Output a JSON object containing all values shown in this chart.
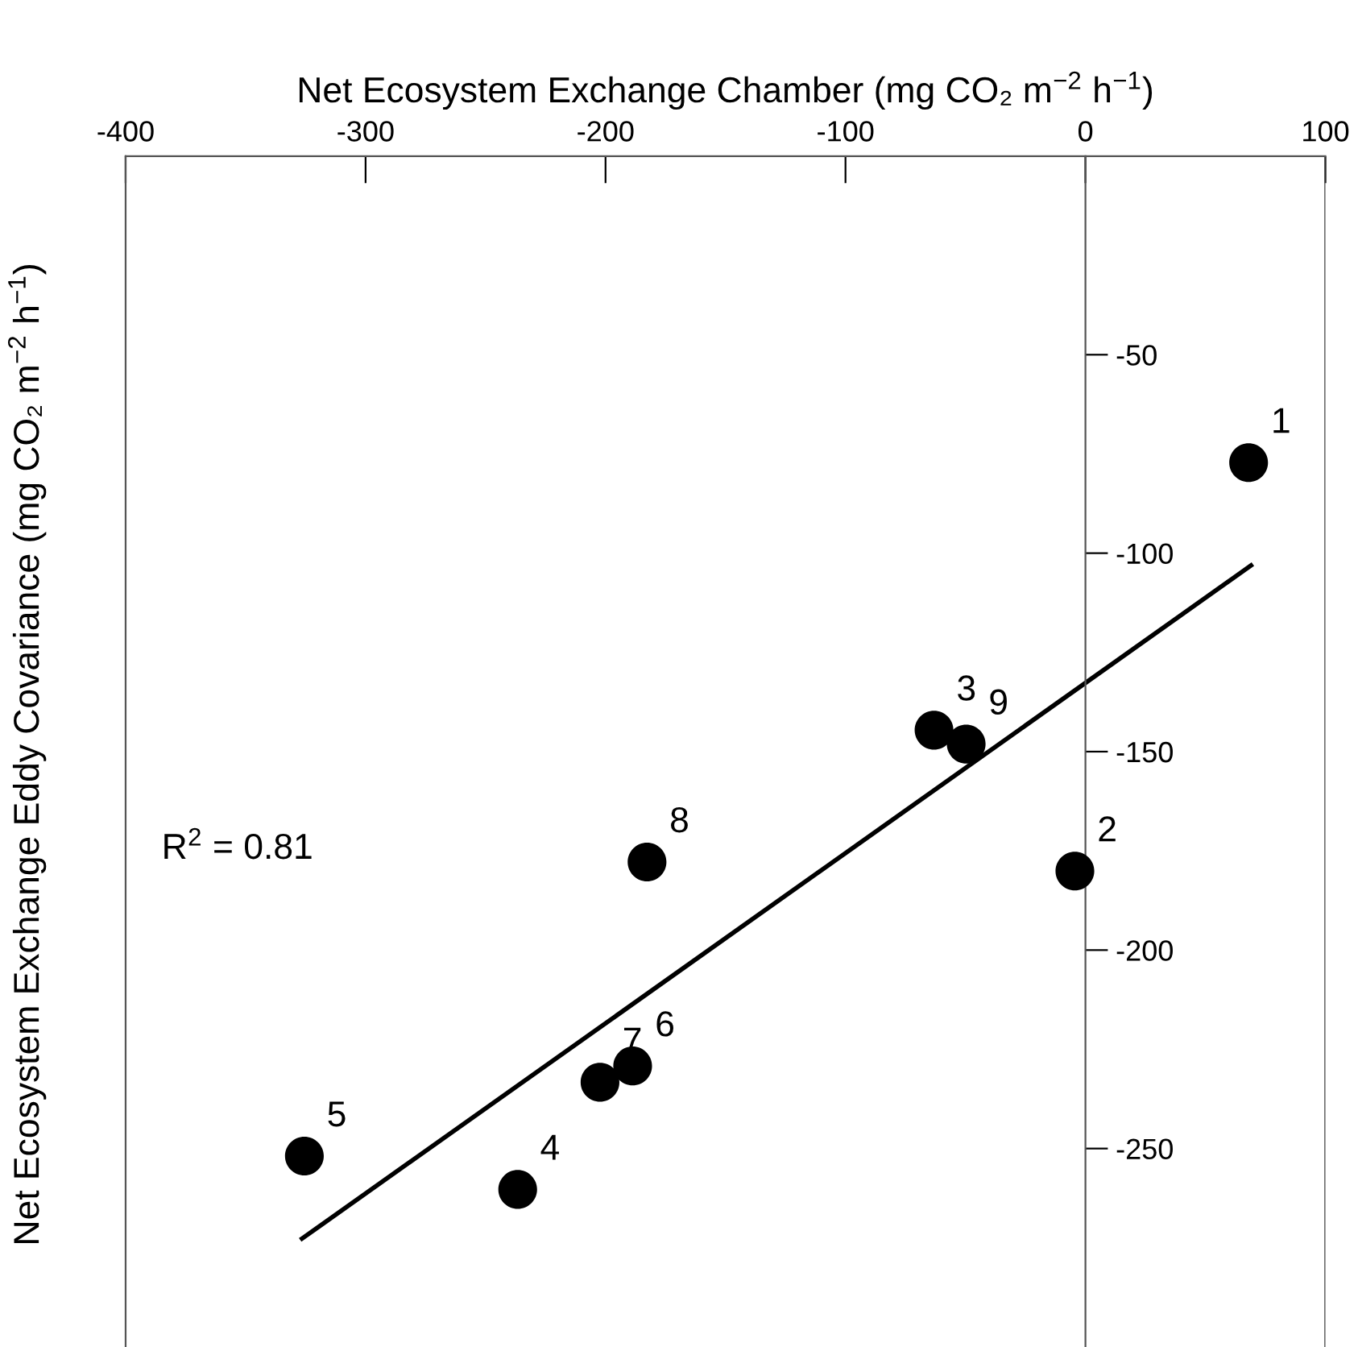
{
  "chart_data": {
    "type": "scatter",
    "xlabel": "Net Ecosystem Exchange Chamber (mg CO₂ m$^{−2}$ h$^{−1}$)",
    "ylabel": "Net Ecosystem Exchange Eddy Covariance (mg CO₂ m$^{−2}$ h$^{−1}$)",
    "xlim": [
      -400,
      100
    ],
    "xticks": [
      -400,
      -300,
      -200,
      -100,
      0,
      100
    ],
    "ylim": [
      -300,
      0
    ],
    "yticks": [
      -50,
      -100,
      -150,
      -200,
      -250
    ],
    "grid": false,
    "marker": "circle",
    "series": [
      {
        "color": "#000000",
        "x": [
          68,
          -4.4,
          -63.1,
          -236.6,
          -325.5,
          -188.7,
          -202.3,
          -182.7,
          -49.7
        ],
        "values": [
          -77.2,
          -180.1,
          -144.6,
          -260.3,
          -251.9,
          -229.2,
          -233.3,
          -177.8,
          -148.1
        ]
      },
      {
        "type": "line",
        "color": "#000000",
        "line_style": "solid",
        "marker": "none",
        "x": [
          -326.5,
          69
        ],
        "values": [
          -272.7,
          -103.1
        ]
      }
    ],
    "annotations": [
      {
        "text": "1",
        "x": 68,
        "y": -77.2
      },
      {
        "text": "2",
        "x": -4.4,
        "y": -180.1
      },
      {
        "text": "3",
        "x": -63.1,
        "y": -144.6
      },
      {
        "text": "4",
        "x": -236.6,
        "y": -260.3
      },
      {
        "text": "5",
        "x": -325.5,
        "y": -251.9
      },
      {
        "text": "6",
        "x": -188.7,
        "y": -229.2
      },
      {
        "text": "7",
        "x": -202.3,
        "y": -233.3
      },
      {
        "text": "8",
        "x": -182.7,
        "y": -177.8
      },
      {
        "text": "9",
        "x": -49.7,
        "y": -148.1
      },
      "R$^{2}$ = 0.81"
    ]
  }
}
